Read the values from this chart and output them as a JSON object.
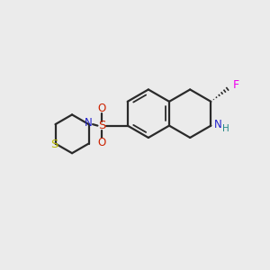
{
  "background_color": "#ebebeb",
  "bond_color": "#2a2a2a",
  "atom_colors": {
    "F": "#ee00ee",
    "N": "#2222cc",
    "S_sulfonyl": "#cc2200",
    "S_thio": "#bbbb00",
    "O": "#cc2200",
    "H": "#228888",
    "C": "#2a2a2a"
  },
  "figsize": [
    3.0,
    3.0
  ],
  "dpi": 100
}
